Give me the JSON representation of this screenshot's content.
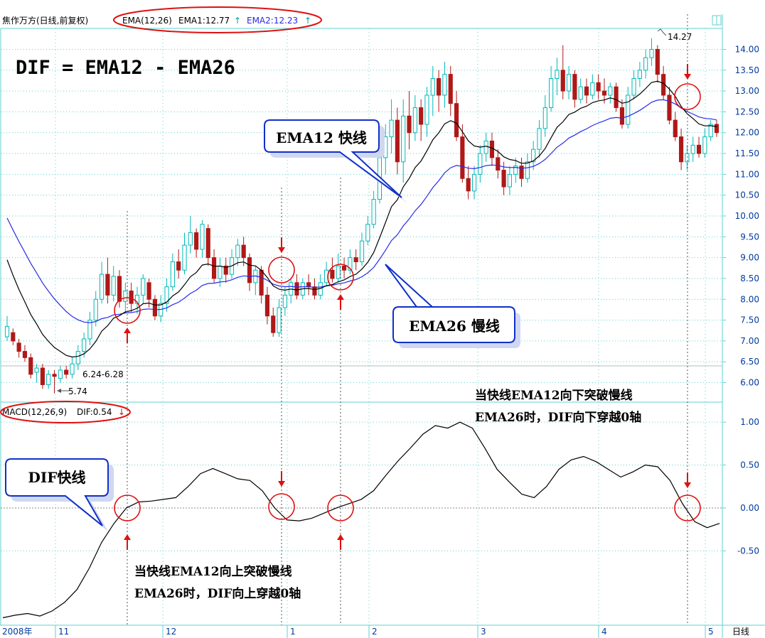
{
  "header": {
    "stock_title": "焦作万方(日线,前复权)",
    "ema_label": "EMA(12,26)",
    "ema1_readout": "EMA1:12.77",
    "ema2_readout": "EMA2:12.23",
    "up_arrow": "↑"
  },
  "macd_header": {
    "label": "MACD(12,26,9)",
    "dif_readout": "DIF:0.54",
    "down_arrow": "↓"
  },
  "formula": "DIF = EMA12 - EMA26",
  "callouts": {
    "ema12": "EMA12 快线",
    "ema26": "EMA26 慢线",
    "dif": "DIF快线"
  },
  "notes": {
    "down_line1": "当快线EMA12向下突破慢线",
    "down_line2": "EMA26时，DIF向下穿越0轴",
    "up_line1": "当快线EMA12向上突破慢线",
    "up_line2": "EMA26时，DIF向上穿越0轴"
  },
  "annotations": {
    "high": "14.27",
    "low": "5.74",
    "range": "6.24-6.28"
  },
  "timeframe_label": "日线",
  "colors": {
    "up_candle": "#00b8b8",
    "down_candle": "#b01818",
    "ema12": "#000000",
    "ema26": "#2a2ae8",
    "grid": "#5fd0d0",
    "axis_text": "#003a9e",
    "highlight": "#e01010",
    "callout_border": "#1030c8"
  },
  "chart_data": [
    {
      "type": "candlestick",
      "title": "焦作万方(日线,前复权)",
      "y_ticks": [
        6.0,
        6.5,
        7.0,
        7.5,
        8.0,
        8.5,
        9.0,
        9.5,
        10.0,
        10.5,
        11.0,
        11.5,
        12.0,
        12.5,
        13.0,
        13.5,
        14.0
      ],
      "ylim": [
        5.6,
        14.4
      ],
      "x_ticks": [
        "2008年",
        "11",
        "12",
        "1",
        "2",
        "3",
        "4",
        "5"
      ],
      "grid": true,
      "candles": [
        [
          7.1,
          7.35,
          7.0,
          7.6
        ],
        [
          7.2,
          7.0,
          6.9,
          7.3
        ],
        [
          6.95,
          6.75,
          6.6,
          7.05
        ],
        [
          6.75,
          6.6,
          6.5,
          6.9
        ],
        [
          6.6,
          6.2,
          6.1,
          6.7
        ],
        [
          6.25,
          6.35,
          6.0,
          6.45
        ],
        [
          6.35,
          5.95,
          5.85,
          6.45
        ],
        [
          5.95,
          6.2,
          5.85,
          6.3
        ],
        [
          6.2,
          6.15,
          5.74,
          6.3
        ],
        [
          6.1,
          6.3,
          6.0,
          6.4
        ],
        [
          6.3,
          6.2,
          6.1,
          6.4
        ],
        [
          6.2,
          6.45,
          6.1,
          6.6
        ],
        [
          6.45,
          6.75,
          6.3,
          6.9
        ],
        [
          6.75,
          7.05,
          6.6,
          7.2
        ],
        [
          7.05,
          7.5,
          6.9,
          7.7
        ],
        [
          7.5,
          8.0,
          7.35,
          8.2
        ],
        [
          8.0,
          8.6,
          7.9,
          8.9
        ],
        [
          8.6,
          8.1,
          7.9,
          9.0
        ],
        [
          8.1,
          8.55,
          7.95,
          8.8
        ],
        [
          8.55,
          7.95,
          7.8,
          8.7
        ],
        [
          7.95,
          8.2,
          7.7,
          8.4
        ],
        [
          8.2,
          7.9,
          7.7,
          8.4
        ],
        [
          7.9,
          8.1,
          7.65,
          8.3
        ],
        [
          8.1,
          8.5,
          7.9,
          8.6
        ],
        [
          8.4,
          8.0,
          7.8,
          8.5
        ],
        [
          8.0,
          7.6,
          7.5,
          8.1
        ],
        [
          7.6,
          7.9,
          7.45,
          8.1
        ],
        [
          7.9,
          8.3,
          7.7,
          8.5
        ],
        [
          8.3,
          8.9,
          8.2,
          9.1
        ],
        [
          8.9,
          8.7,
          8.5,
          9.2
        ],
        [
          8.7,
          9.3,
          8.6,
          9.6
        ],
        [
          9.3,
          9.6,
          9.1,
          10.0
        ],
        [
          9.6,
          9.2,
          9.0,
          9.7
        ],
        [
          9.2,
          9.8,
          9.0,
          9.9
        ],
        [
          9.7,
          9.0,
          8.8,
          9.8
        ],
        [
          9.0,
          8.5,
          8.4,
          9.2
        ],
        [
          8.5,
          8.8,
          8.3,
          9.0
        ],
        [
          8.8,
          8.6,
          8.4,
          9.0
        ],
        [
          8.6,
          9.0,
          8.5,
          9.2
        ],
        [
          9.0,
          9.3,
          8.8,
          9.45
        ],
        [
          9.3,
          9.0,
          8.8,
          9.5
        ],
        [
          9.0,
          8.4,
          8.2,
          9.1
        ],
        [
          8.4,
          8.7,
          8.1,
          8.8
        ],
        [
          8.7,
          8.1,
          7.9,
          8.8
        ],
        [
          8.1,
          7.6,
          7.4,
          8.3
        ],
        [
          7.6,
          7.2,
          7.1,
          7.8
        ],
        [
          7.2,
          7.8,
          7.1,
          8.0
        ],
        [
          7.8,
          8.1,
          7.6,
          8.3
        ],
        [
          8.1,
          8.4,
          7.9,
          8.5
        ],
        [
          8.4,
          8.1,
          8.0,
          8.6
        ],
        [
          8.1,
          8.4,
          8.0,
          8.5
        ],
        [
          8.4,
          8.3,
          8.1,
          8.6
        ],
        [
          8.3,
          8.1,
          8.0,
          8.5
        ],
        [
          8.1,
          8.4,
          8.0,
          8.6
        ],
        [
          8.4,
          8.7,
          8.3,
          8.9
        ],
        [
          8.7,
          8.5,
          8.4,
          9.0
        ],
        [
          8.5,
          8.8,
          8.4,
          9.1
        ],
        [
          8.8,
          8.7,
          8.5,
          9.0
        ],
        [
          8.7,
          9.0,
          8.6,
          9.2
        ],
        [
          9.0,
          8.9,
          8.7,
          9.2
        ],
        [
          8.9,
          9.4,
          8.8,
          9.6
        ],
        [
          9.4,
          9.8,
          9.3,
          10.0
        ],
        [
          9.8,
          10.4,
          9.7,
          10.6
        ],
        [
          10.4,
          11.4,
          10.3,
          11.6
        ],
        [
          11.4,
          11.9,
          11.0,
          12.2
        ],
        [
          11.9,
          12.3,
          11.5,
          12.8
        ],
        [
          12.3,
          11.3,
          11.0,
          12.6
        ],
        [
          11.3,
          12.4,
          10.8,
          12.8
        ],
        [
          12.4,
          12.0,
          11.6,
          13.0
        ],
        [
          12.0,
          12.6,
          11.8,
          12.9
        ],
        [
          12.6,
          12.2,
          11.8,
          12.8
        ],
        [
          12.2,
          12.9,
          11.9,
          13.1
        ],
        [
          12.9,
          13.3,
          12.4,
          13.6
        ],
        [
          13.3,
          12.9,
          12.5,
          13.5
        ],
        [
          12.9,
          13.4,
          12.6,
          13.7
        ],
        [
          13.4,
          12.7,
          12.4,
          13.6
        ],
        [
          12.7,
          11.9,
          11.8,
          13.0
        ],
        [
          11.9,
          10.9,
          10.8,
          12.2
        ],
        [
          10.9,
          10.6,
          10.4,
          11.2
        ],
        [
          10.6,
          11.0,
          10.4,
          11.2
        ],
        [
          11.0,
          11.5,
          10.8,
          11.7
        ],
        [
          11.5,
          11.8,
          11.3,
          12.0
        ],
        [
          11.8,
          11.4,
          11.2,
          12.0
        ],
        [
          11.4,
          11.1,
          10.9,
          11.6
        ],
        [
          11.1,
          10.7,
          10.5,
          11.3
        ],
        [
          10.7,
          11.0,
          10.5,
          11.2
        ],
        [
          11.0,
          11.2,
          10.8,
          11.4
        ],
        [
          11.2,
          10.9,
          10.7,
          11.4
        ],
        [
          10.9,
          11.3,
          10.8,
          11.5
        ],
        [
          11.3,
          11.6,
          11.1,
          11.8
        ],
        [
          11.6,
          12.1,
          11.4,
          12.3
        ],
        [
          12.1,
          12.6,
          11.9,
          12.9
        ],
        [
          12.6,
          13.3,
          12.5,
          13.6
        ],
        [
          13.3,
          13.5,
          12.9,
          13.8
        ],
        [
          13.5,
          13.0,
          12.8,
          14.1
        ],
        [
          13.0,
          13.4,
          12.8,
          13.6
        ],
        [
          13.4,
          12.8,
          12.6,
          13.5
        ],
        [
          12.8,
          13.1,
          12.7,
          13.3
        ],
        [
          13.1,
          12.9,
          12.7,
          13.3
        ],
        [
          12.9,
          13.2,
          12.8,
          13.4
        ],
        [
          13.2,
          13.0,
          12.8,
          13.4
        ],
        [
          13.0,
          12.9,
          12.7,
          13.3
        ],
        [
          12.9,
          13.1,
          12.7,
          13.2
        ],
        [
          13.1,
          12.6,
          12.5,
          13.2
        ],
        [
          12.6,
          12.2,
          12.1,
          12.8
        ],
        [
          12.2,
          12.9,
          12.1,
          13.1
        ],
        [
          12.9,
          13.3,
          12.8,
          13.5
        ],
        [
          13.3,
          13.5,
          13.1,
          13.7
        ],
        [
          13.5,
          13.8,
          13.3,
          14.0
        ],
        [
          13.8,
          14.0,
          13.6,
          14.27
        ],
        [
          14.0,
          13.4,
          13.2,
          14.1
        ],
        [
          13.4,
          12.9,
          12.8,
          13.6
        ],
        [
          12.9,
          12.3,
          12.2,
          13.1
        ],
        [
          12.3,
          11.9,
          11.8,
          12.5
        ],
        [
          11.9,
          11.3,
          11.1,
          12.1
        ],
        [
          11.3,
          11.5,
          11.1,
          11.7
        ],
        [
          11.5,
          11.7,
          11.3,
          11.9
        ],
        [
          11.7,
          11.5,
          11.4,
          11.9
        ],
        [
          11.5,
          11.9,
          11.4,
          12.1
        ],
        [
          11.9,
          12.2,
          11.8,
          12.3
        ],
        [
          12.2,
          12.0,
          11.9,
          12.3
        ]
      ]
    },
    {
      "type": "line",
      "title": "MACD(12,26,9)",
      "y_ticks": [
        -0.5,
        0.0,
        0.5,
        1.0
      ],
      "ylim": [
        -1.35,
        1.2
      ],
      "grid": true,
      "series": [
        {
          "name": "DIF",
          "values": [
            -1.28,
            -1.25,
            -1.23,
            -1.26,
            -1.2,
            -1.1,
            -0.95,
            -0.7,
            -0.4,
            -0.18,
            0.0,
            0.07,
            0.08,
            0.1,
            0.12,
            0.25,
            0.4,
            0.46,
            0.4,
            0.34,
            0.32,
            0.2,
            0.0,
            -0.14,
            -0.15,
            -0.12,
            -0.06,
            0.0,
            0.05,
            0.1,
            0.2,
            0.38,
            0.55,
            0.7,
            0.86,
            0.96,
            0.93,
            1.0,
            0.93,
            0.7,
            0.45,
            0.3,
            0.16,
            0.12,
            0.25,
            0.45,
            0.56,
            0.6,
            0.54,
            0.45,
            0.36,
            0.42,
            0.5,
            0.48,
            0.32,
            0.05,
            -0.16,
            -0.23,
            -0.18
          ]
        }
      ]
    }
  ]
}
